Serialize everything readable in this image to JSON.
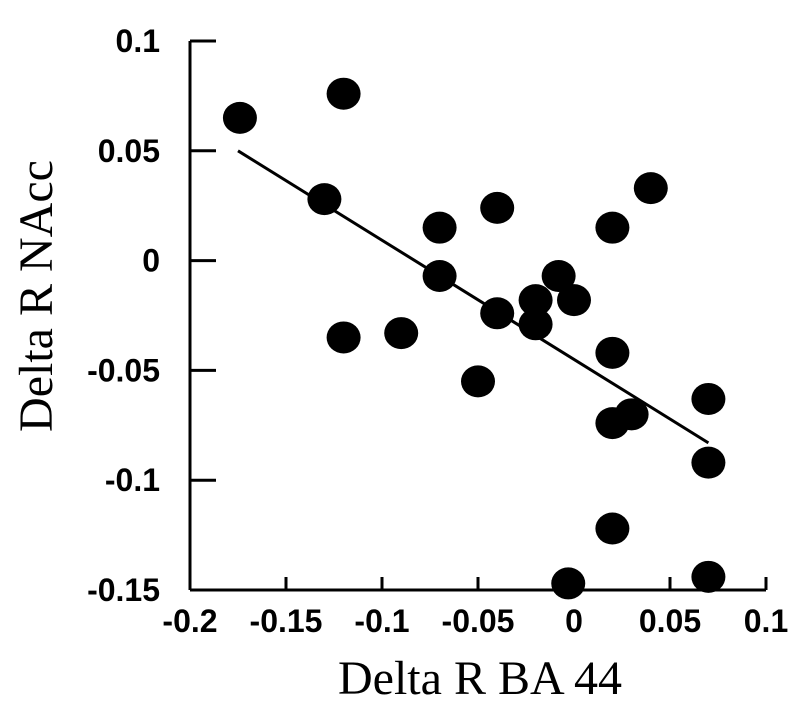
{
  "chart_data": {
    "type": "scatter",
    "title": "",
    "xlabel": "Delta R BA 44",
    "ylabel": "Delta R NAcc",
    "xlim": [
      -0.2,
      0.1
    ],
    "ylim": [
      -0.15,
      0.1
    ],
    "x_ticks": [
      -0.2,
      -0.15,
      -0.1,
      -0.05,
      0,
      0.05,
      0.1
    ],
    "x_tick_labels": [
      "-0.2",
      "-0.15",
      "-0.1",
      "-0.05",
      "0",
      "0.05",
      "0.1"
    ],
    "y_ticks": [
      0.1,
      0.05,
      0,
      -0.05,
      -0.1,
      -0.15
    ],
    "y_tick_labels": [
      "0.1",
      "0.05",
      "0",
      "-0.05",
      "-0.1",
      "-0.15"
    ],
    "grid": false,
    "legend": "none",
    "marker_color": "#000000",
    "points": [
      {
        "x": -0.174,
        "y": 0.065
      },
      {
        "x": -0.12,
        "y": 0.076
      },
      {
        "x": -0.13,
        "y": 0.028
      },
      {
        "x": -0.12,
        "y": -0.035
      },
      {
        "x": -0.09,
        "y": -0.033
      },
      {
        "x": -0.07,
        "y": 0.015
      },
      {
        "x": -0.07,
        "y": -0.007
      },
      {
        "x": -0.04,
        "y": 0.024
      },
      {
        "x": -0.04,
        "y": -0.024
      },
      {
        "x": -0.05,
        "y": -0.055
      },
      {
        "x": -0.02,
        "y": -0.018
      },
      {
        "x": -0.02,
        "y": -0.029
      },
      {
        "x": -0.008,
        "y": -0.007
      },
      {
        "x": 0,
        "y": -0.018
      },
      {
        "x": 0.02,
        "y": 0.015
      },
      {
        "x": 0.04,
        "y": 0.033
      },
      {
        "x": 0.02,
        "y": -0.042
      },
      {
        "x": 0.02,
        "y": -0.074
      },
      {
        "x": 0.03,
        "y": -0.07
      },
      {
        "x": 0.07,
        "y": -0.063
      },
      {
        "x": 0.07,
        "y": -0.092
      },
      {
        "x": 0.02,
        "y": -0.122
      },
      {
        "x": -0.003,
        "y": -0.147
      },
      {
        "x": 0.07,
        "y": -0.144
      }
    ],
    "regression_line": {
      "x": [
        -0.175,
        0.07
      ],
      "y": [
        0.05,
        -0.083
      ]
    }
  }
}
